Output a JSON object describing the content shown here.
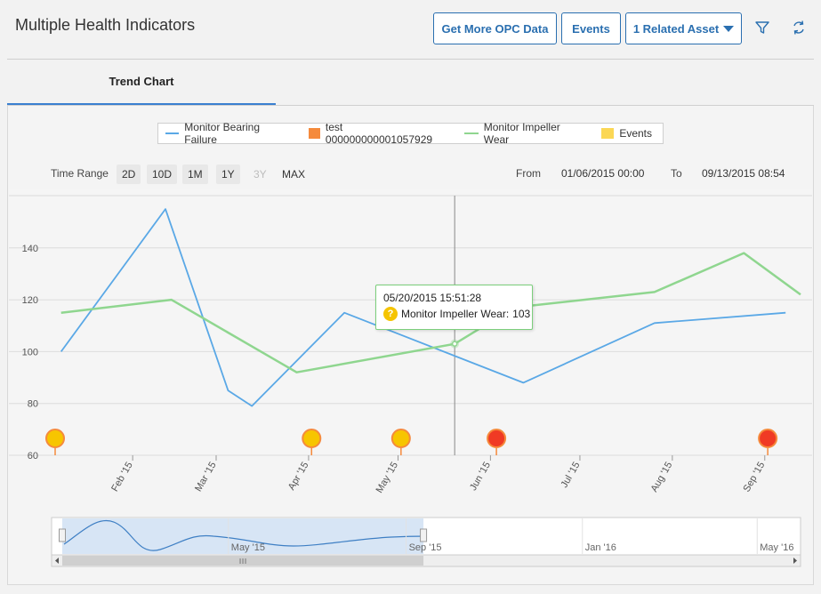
{
  "header": {
    "title": "Multiple Health Indicators",
    "buttons": {
      "opc": "Get More OPC Data",
      "events": "Events",
      "related": "1 Related Asset"
    }
  },
  "tabs": [
    {
      "label": "Trend Chart",
      "active": true
    }
  ],
  "colors": {
    "accent": "#2a6fb0",
    "bearing": "#5aa8e6",
    "test": "#f58a3c",
    "impeller": "#8fd68f",
    "events": "#fbd755",
    "event_yellow": "#f7c500",
    "event_red": "#f03a24"
  },
  "legend": [
    {
      "label": "Monitor Bearing Failure",
      "kind": "line",
      "color": "#5aa8e6"
    },
    {
      "label": "test 000000000001057929",
      "kind": "square",
      "color": "#f58a3c"
    },
    {
      "label": "Monitor Impeller Wear",
      "kind": "line",
      "color": "#8fd68f"
    },
    {
      "label": "Events",
      "kind": "square",
      "color": "#fbd755"
    }
  ],
  "time_range": {
    "label": "Time Range",
    "buttons": [
      {
        "label": "2D",
        "enabled": true
      },
      {
        "label": "10D",
        "enabled": true
      },
      {
        "label": "1M",
        "enabled": true
      },
      {
        "label": "1Y",
        "enabled": true
      },
      {
        "label": "3Y",
        "enabled": false
      },
      {
        "label": "MAX",
        "enabled": true
      }
    ],
    "from_label": "From",
    "from_value": "01/06/2015 00:00",
    "to_label": "To",
    "to_value": "09/13/2015 08:54"
  },
  "tooltip": {
    "date": "05/20/2015 15:51:28",
    "series": "Monitor Impeller Wear:",
    "value": "103"
  },
  "chart_data": {
    "type": "line",
    "grid": true,
    "y_ticks": [
      60,
      80,
      100,
      120,
      140
    ],
    "ylim": [
      60,
      160
    ],
    "x_range": [
      "2015-01-06",
      "2015-09-13"
    ],
    "x_ticks": [
      {
        "label": "Feb '15",
        "date": "2015-02-01"
      },
      {
        "label": "Mar '15",
        "date": "2015-03-01"
      },
      {
        "label": "Apr '15",
        "date": "2015-04-01"
      },
      {
        "label": "May '15",
        "date": "2015-05-01"
      },
      {
        "label": "Jun '15",
        "date": "2015-06-01"
      },
      {
        "label": "Jul '15",
        "date": "2015-07-01"
      },
      {
        "label": "Aug '15",
        "date": "2015-08-01"
      },
      {
        "label": "Sep '15",
        "date": "2015-09-01"
      }
    ],
    "series": [
      {
        "name": "Monitor Bearing Failure",
        "color": "#5aa8e6",
        "points": [
          [
            "2015-01-08",
            100
          ],
          [
            "2015-02-12",
            155
          ],
          [
            "2015-03-05",
            85
          ],
          [
            "2015-03-13",
            79
          ],
          [
            "2015-04-13",
            115
          ],
          [
            "2015-06-12",
            88
          ],
          [
            "2015-07-26",
            111
          ],
          [
            "2015-09-08",
            115
          ]
        ]
      },
      {
        "name": "Monitor Impeller Wear",
        "color": "#8fd68f",
        "points": [
          [
            "2015-01-08",
            115
          ],
          [
            "2015-02-14",
            120
          ],
          [
            "2015-03-28",
            92
          ],
          [
            "2015-05-20",
            103
          ],
          [
            "2015-06-09",
            117
          ],
          [
            "2015-07-26",
            123
          ],
          [
            "2015-08-25",
            138
          ],
          [
            "2015-09-13",
            122
          ]
        ]
      }
    ],
    "events": [
      {
        "date": "2015-01-06",
        "color": "#f7c500"
      },
      {
        "date": "2015-04-02",
        "color": "#f7c500"
      },
      {
        "date": "2015-05-02",
        "color": "#f7c500"
      },
      {
        "date": "2015-06-03",
        "color": "#f03a24"
      },
      {
        "date": "2015-09-02",
        "color": "#f03a24"
      }
    ],
    "crosshair_date": "2015-05-20",
    "navigator": {
      "labels": [
        {
          "label": "May '15",
          "date": "2015-05-01"
        },
        {
          "label": "Sep '15",
          "date": "2015-09-01"
        },
        {
          "label": "Jan '16",
          "date": "2016-01-01"
        },
        {
          "label": "May '16",
          "date": "2016-05-01"
        }
      ],
      "range": [
        "2015-01-06",
        "2016-05-31"
      ],
      "window": [
        "2015-01-06",
        "2015-09-13"
      ]
    }
  }
}
